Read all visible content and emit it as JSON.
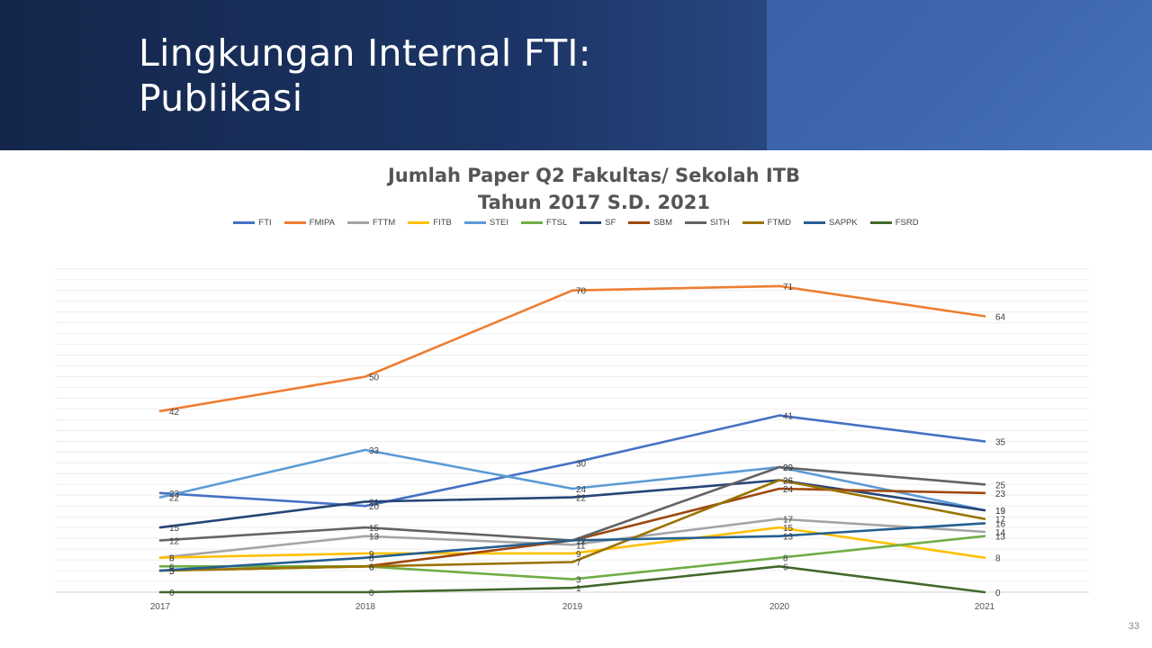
{
  "slide": {
    "title_line1": "Lingkungan Internal FTI:",
    "title_line2": "Publikasi",
    "page_number": "33"
  },
  "chart_data": {
    "type": "line",
    "title_line1": "Jumlah Paper Q2 Fakultas/ Sekolah ITB",
    "title_line2": "Tahun 2017 S.D. 2021",
    "categories": [
      "2017",
      "2018",
      "2019",
      "2020",
      "2021"
    ],
    "ylim": [
      0,
      75
    ],
    "grid": true,
    "legend_position": "top",
    "series": [
      {
        "name": "FTI",
        "color": "#4472c4",
        "values": [
          23,
          20,
          30,
          41,
          35
        ]
      },
      {
        "name": "FMIPA",
        "color": "#ed7d31",
        "values": [
          42,
          50,
          70,
          71,
          64
        ]
      },
      {
        "name": "FTTM",
        "color": "#a5a5a5",
        "values": [
          8,
          13,
          11,
          17,
          14
        ]
      },
      {
        "name": "FITB",
        "color": "#ffc000",
        "values": [
          8,
          9,
          9,
          15,
          8
        ]
      },
      {
        "name": "STEI",
        "color": "#5b9bd5",
        "values": [
          22,
          33,
          24,
          29,
          19
        ]
      },
      {
        "name": "FTSL",
        "color": "#70ad47",
        "values": [
          6,
          6,
          3,
          8,
          13
        ]
      },
      {
        "name": "SF",
        "color": "#264478",
        "values": [
          15,
          21,
          22,
          26,
          19
        ]
      },
      {
        "name": "SBM",
        "color": "#9e480e",
        "values": [
          5,
          6,
          12,
          24,
          23
        ]
      },
      {
        "name": "SITH",
        "color": "#636363",
        "values": [
          12,
          15,
          12,
          29,
          25
        ]
      },
      {
        "name": "FTMD",
        "color": "#997300",
        "values": [
          5,
          6,
          7,
          26,
          17
        ]
      },
      {
        "name": "SAPPK",
        "color": "#255e91",
        "values": [
          5,
          8,
          12,
          13,
          16
        ]
      },
      {
        "name": "FSRD",
        "color": "#43682b",
        "values": [
          0,
          0,
          1,
          6,
          0
        ]
      }
    ]
  }
}
